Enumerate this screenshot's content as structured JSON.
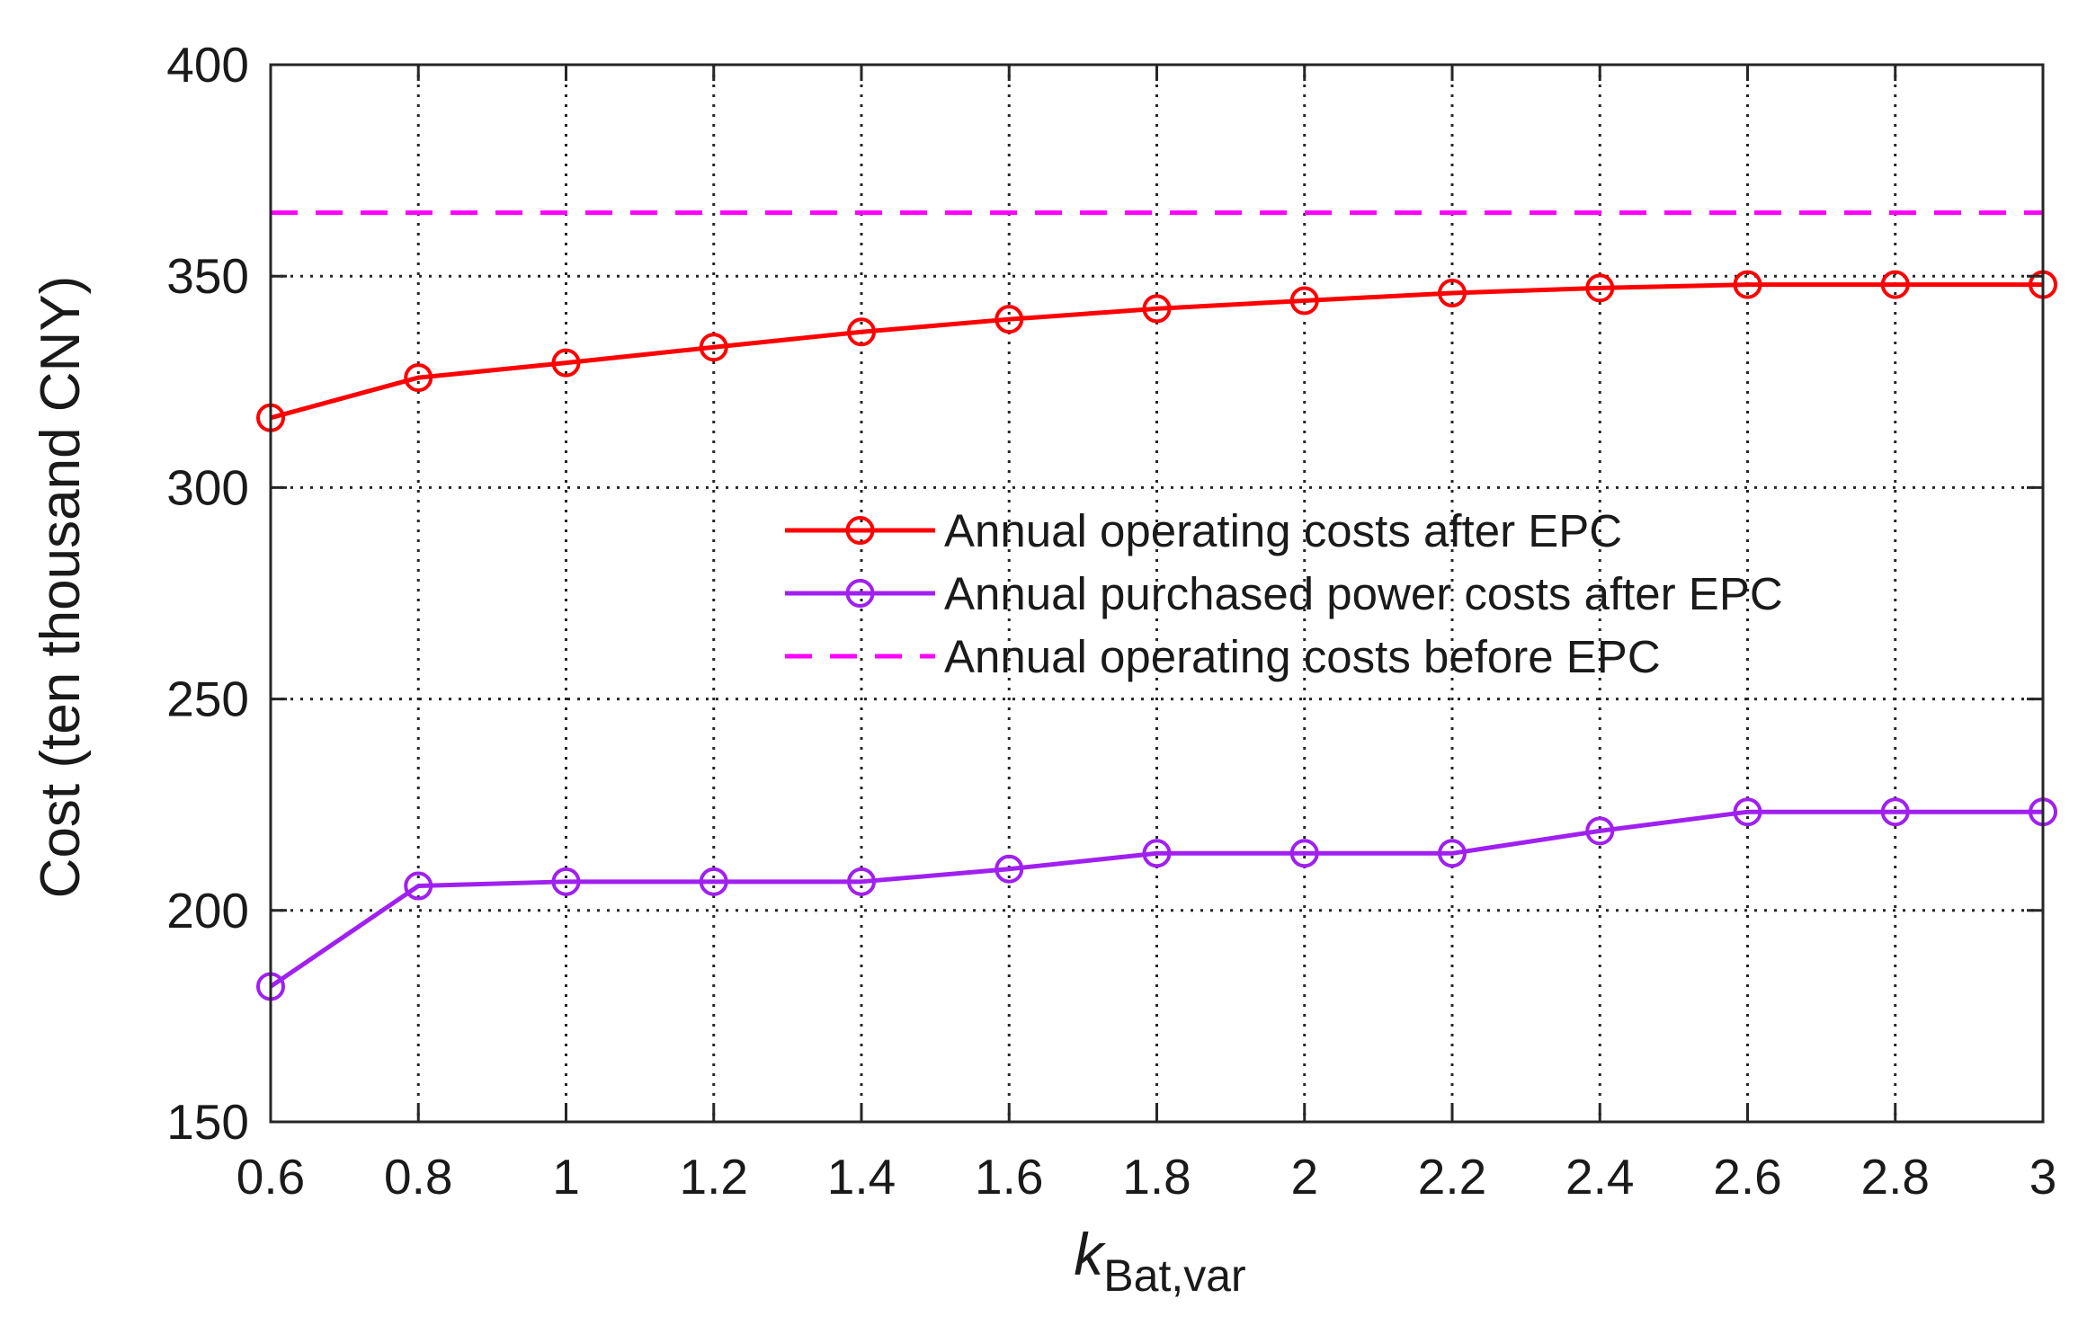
{
  "chart_data": {
    "type": "line",
    "title": "",
    "xlabel": {
      "main": "k",
      "subscript": "Bat,var"
    },
    "ylabel": "Cost (ten thousand CNY)",
    "x": [
      0.6,
      0.8,
      1.0,
      1.2,
      1.4,
      1.6,
      1.8,
      2.0,
      2.2,
      2.4,
      2.6,
      2.8,
      3.0
    ],
    "xlim": [
      0.6,
      3.0
    ],
    "ylim": [
      150,
      400
    ],
    "xticks": [
      0.6,
      0.8,
      1,
      1.2,
      1.4,
      1.6,
      1.8,
      2,
      2.2,
      2.4,
      2.6,
      2.8,
      3
    ],
    "xtick_labels": [
      "0.6",
      "0.8",
      "1",
      "1.2",
      "1.4",
      "1.6",
      "1.8",
      "2",
      "2.2",
      "2.4",
      "2.6",
      "2.8",
      "3"
    ],
    "yticks": [
      150,
      200,
      250,
      300,
      350,
      400
    ],
    "ytick_labels": [
      "150",
      "200",
      "250",
      "300",
      "350",
      "400"
    ],
    "grid": true,
    "legend_position": "center-right",
    "series": [
      {
        "name": "Annual operating costs after EPC",
        "color": "#ff0000",
        "style": "solid",
        "marker": "circle",
        "values": [
          316.5,
          326.0,
          329.5,
          333.2,
          336.8,
          339.8,
          342.3,
          344.2,
          346.0,
          347.2,
          348.0,
          348.0,
          348.0
        ]
      },
      {
        "name": "Annual purchased power costs after EPC",
        "color": "#a020f0",
        "style": "solid",
        "marker": "circle",
        "values": [
          182.0,
          205.8,
          206.8,
          206.8,
          206.8,
          209.8,
          213.5,
          213.5,
          213.5,
          218.8,
          223.3,
          223.3,
          223.3
        ]
      },
      {
        "name": "Annual operating costs before EPC",
        "color": "#ff00ff",
        "style": "dashed",
        "marker": "none",
        "values": [
          365,
          365,
          365,
          365,
          365,
          365,
          365,
          365,
          365,
          365,
          365,
          365,
          365
        ]
      }
    ]
  }
}
